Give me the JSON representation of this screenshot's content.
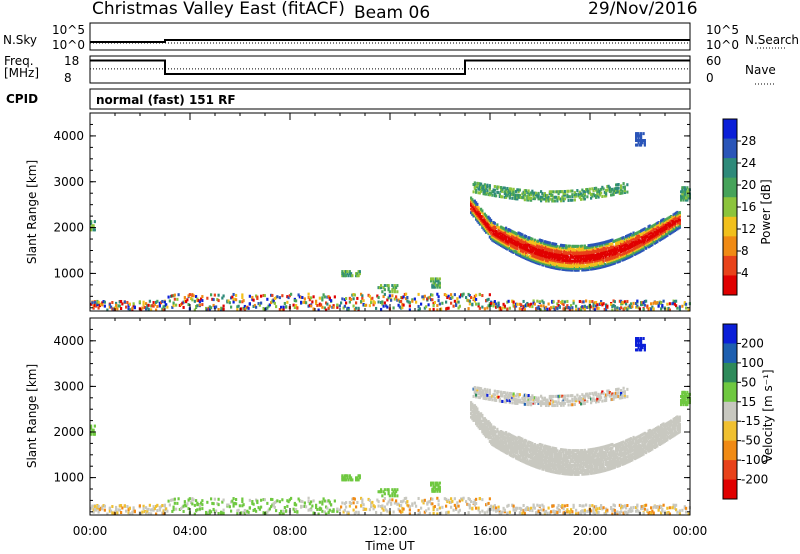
{
  "header": {
    "title": "Christmas Valley East (fitACF)",
    "beam": "Beam 06",
    "date": "29/Nov/2016"
  },
  "colors": {
    "power_scale": [
      "#0b1fd8",
      "#2a55b8",
      "#2e8a7a",
      "#46a35a",
      "#8cc43c",
      "#f2c01c",
      "#f08a14",
      "#e8421a",
      "#e00000"
    ],
    "velocity_scale": [
      "#0b1fd8",
      "#1d5fb0",
      "#2e8a5a",
      "#6fc840",
      "#c8c8c0",
      "#f0c030",
      "#f08a14",
      "#e8421a",
      "#e00000"
    ],
    "ground_scatter": "#c8c8c0"
  },
  "chart_data": [
    {
      "type": "line",
      "panel": "N.Sky / N.Search",
      "left_label": "N.Sky",
      "right_label": "N.Search",
      "left_ticks": [
        "10^5",
        "10^0"
      ],
      "right_ticks": [
        "10^5",
        "10^0"
      ],
      "x": [
        "00:00",
        "03:00",
        "24:00"
      ],
      "series": [
        {
          "values": [
            1,
            2,
            2
          ]
        }
      ]
    },
    {
      "type": "line",
      "panel": "Freq. [MHz] / Nave",
      "left_label_1": "Freq.",
      "left_label_2": "[MHz]",
      "right_label": "Nave",
      "left_ticks": [
        "18",
        "8"
      ],
      "right_ticks": [
        "60",
        "0"
      ],
      "ylim": [
        8,
        18
      ],
      "x": [
        "00:00",
        "03:00",
        "15:00",
        "24:00"
      ],
      "series": [
        {
          "values": [
            15.5,
            10.3,
            15.5,
            15.5
          ]
        },
        {
          "values": [
            12.3,
            12.3,
            12.3,
            12.3
          ]
        }
      ]
    },
    {
      "type": "heatmap",
      "panel": "CPID",
      "label": "CPID",
      "text": "normal (fast) 151 RF"
    },
    {
      "type": "heatmap",
      "panel": "power",
      "ylabel": "Slant Range [km]",
      "xlabel": "",
      "yticks": [
        "4000",
        "3000",
        "2000",
        "1000"
      ],
      "ylim": [
        180,
        4500
      ],
      "xlim": [
        0,
        24
      ],
      "colorbar_label": "Power [dB]",
      "colorbar_ticks": [
        "28",
        "24",
        "20",
        "16",
        "12",
        "8",
        "4"
      ],
      "clim": [
        0,
        30
      ]
    },
    {
      "type": "heatmap",
      "panel": "velocity",
      "ylabel": "Slant Range [km]",
      "xlabel": "Time UT",
      "xticks": [
        "00:00",
        "04:00",
        "08:00",
        "12:00",
        "16:00",
        "20:00",
        "00:00"
      ],
      "yticks": [
        "4000",
        "3000",
        "2000",
        "1000"
      ],
      "ylim": [
        180,
        4500
      ],
      "xlim": [
        0,
        24
      ],
      "colorbar_label": "Velocity [m s⁻¹]",
      "colorbar_ticks": [
        "200",
        "100",
        "50",
        "15",
        "-15",
        "-50",
        "-100",
        "-200"
      ],
      "clim": [
        -250,
        250
      ]
    }
  ]
}
